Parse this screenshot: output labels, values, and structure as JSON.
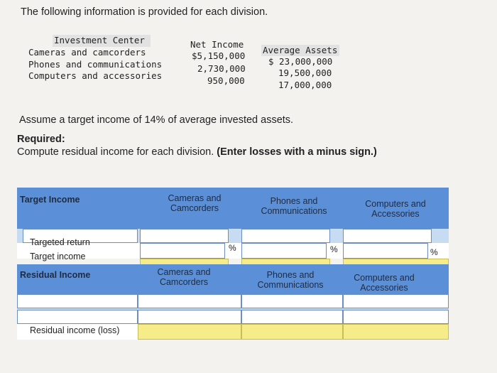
{
  "intro": "The following information is provided for each division.",
  "division_table": {
    "headers": [
      "Investment Center",
      "Net Income",
      "Average Assets"
    ],
    "rows": [
      {
        "center": "Cameras and camcorders",
        "net_income": "$5,150,000",
        "assets": "$ 23,000,000"
      },
      {
        "center": "Phones and communications",
        "net_income": "2,730,000",
        "assets": "19,500,000"
      },
      {
        "center": "Computers and accessories",
        "net_income": "950,000",
        "assets": "17,000,000"
      }
    ]
  },
  "assumption": "Assume a target income of 14% of average invested assets.",
  "required_title": "Required:",
  "required_text": "Compute residual income for each division.",
  "required_note": "(Enter losses with a minus sign.)",
  "grid": {
    "header_label": "Target Income",
    "col1": "Cameras and Camcorders",
    "col2": "Phones and Communications",
    "col3": "Computers and Accessories",
    "row_targeted_return": "Targeted return",
    "row_target_income": "Target income",
    "residual_label": "Residual Income",
    "row_residual": "Residual income (loss)",
    "pct_symbol": "%"
  }
}
